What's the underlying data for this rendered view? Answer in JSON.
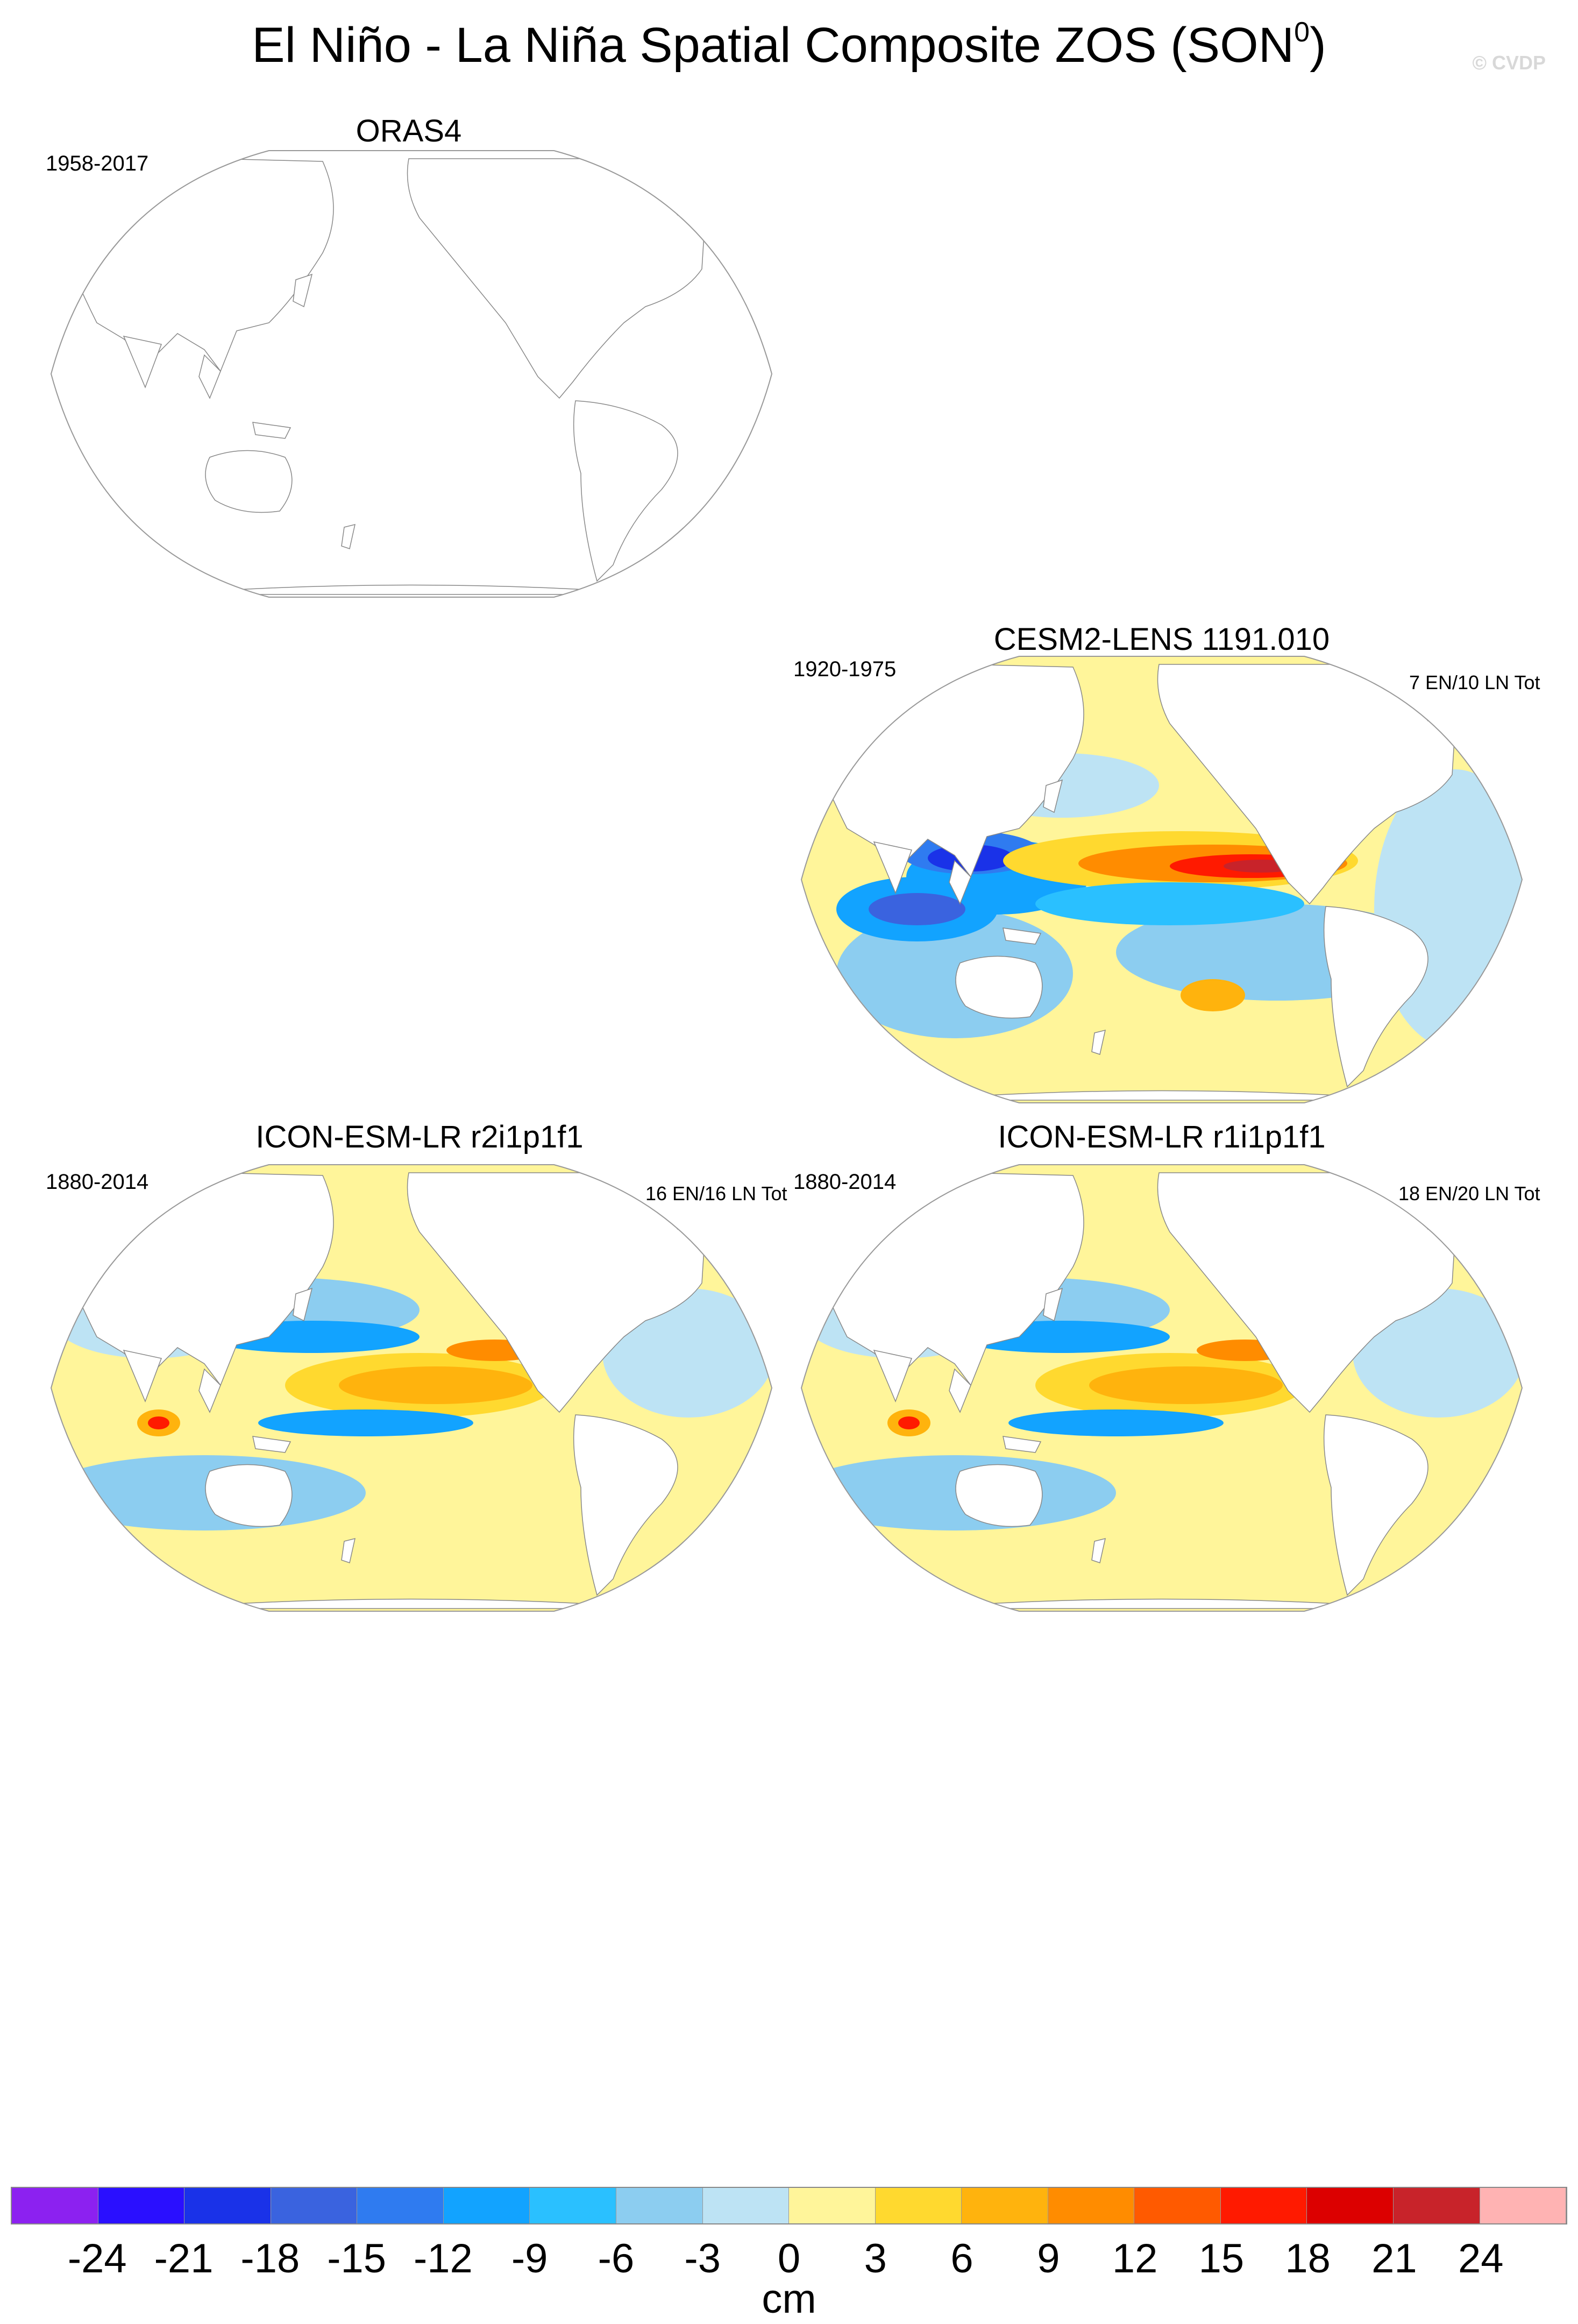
{
  "title": "El Niño - La Niña Spatial Composite ZOS (SON",
  "title_superscript": "0",
  "title_close": ")",
  "watermark": "© CVDP",
  "chart_data": {
    "type": "map-composite",
    "variable": "ZOS",
    "season": "SON",
    "panels": [
      {
        "id": "orass4",
        "title": "ORAS4",
        "years": "1958-2017",
        "count": "",
        "has_data": false
      },
      {
        "id": "cesm2",
        "title": "CESM2-LENS 1191.010",
        "years": "1920-1975",
        "count": "7 EN/10 LN Tot",
        "has_data": true
      },
      {
        "id": "icon-r2",
        "title": "ICON-ESM-LR r2i1p1f1",
        "years": "1880-2014",
        "count": "16 EN/16 LN Tot",
        "has_data": true
      },
      {
        "id": "icon-r1",
        "title": "ICON-ESM-LR r1i1p1f1",
        "years": "1880-2014",
        "count": "18 EN/20 LN Tot",
        "has_data": true
      }
    ],
    "colorbar": {
      "units": "cm",
      "labels": [
        "-24",
        "-21",
        "-18",
        "-15",
        "-12",
        "-9",
        "-6",
        "-3",
        "0",
        "3",
        "6",
        "9",
        "12",
        "15",
        "18",
        "21",
        "24"
      ],
      "colors": [
        "#8c21f0",
        "#2a0fff",
        "#1a32e8",
        "#3a63df",
        "#2f7bf0",
        "#12a3ff",
        "#2ac0ff",
        "#8ccdf0",
        "#bde3f4",
        "#fff59a",
        "#ffd92f",
        "#ffb30d",
        "#ff8c00",
        "#ff5a00",
        "#ff1a00",
        "#dc0000",
        "#c8232a",
        "#ffb3b3"
      ]
    }
  }
}
